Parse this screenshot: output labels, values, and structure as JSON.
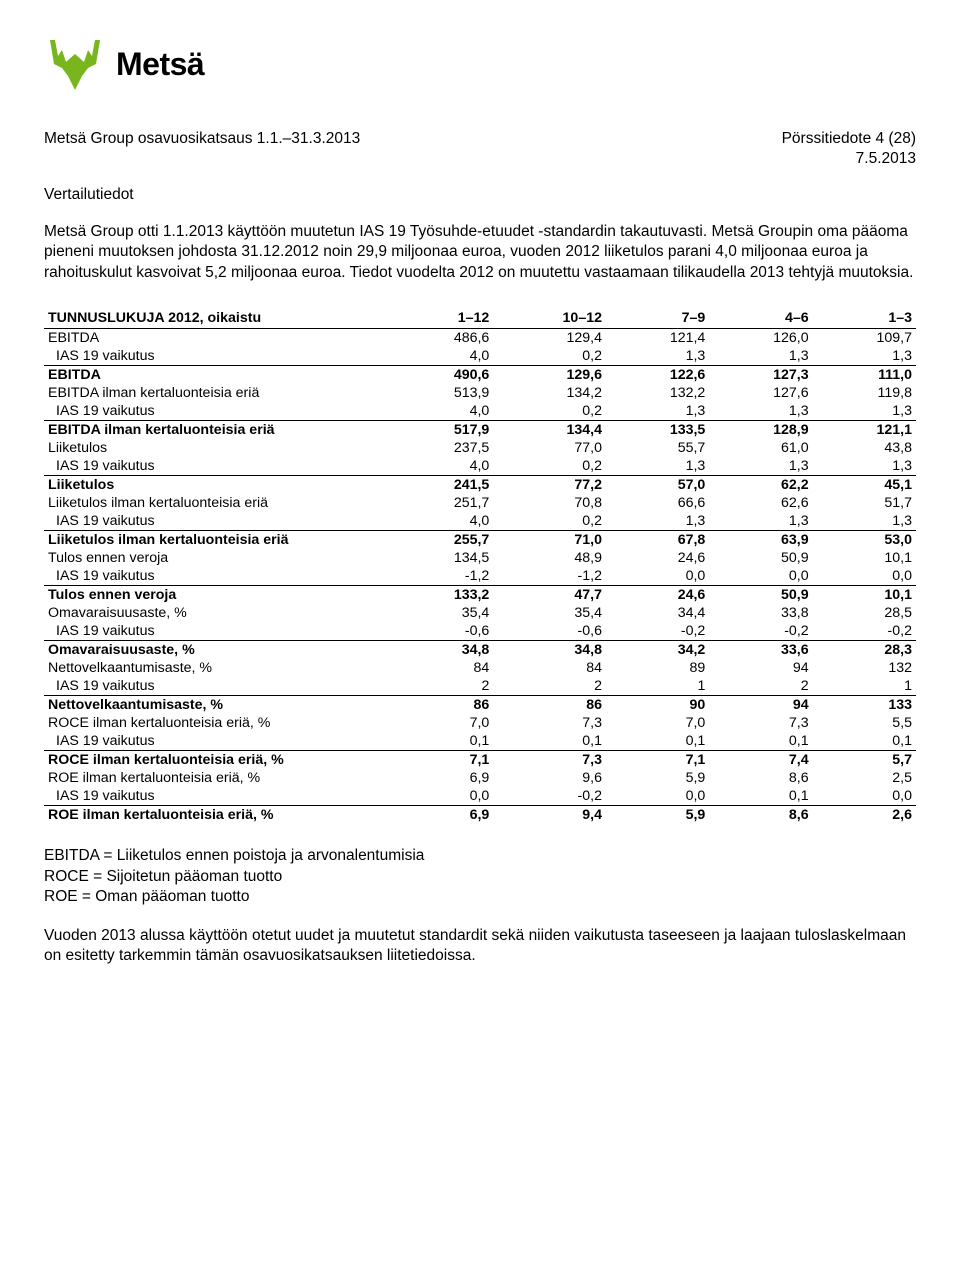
{
  "logo": {
    "brand": "Metsä",
    "icon_color": "#79b51c"
  },
  "header": {
    "left": "Metsä Group osavuosikatsaus 1.1.–31.3.2013",
    "right": "Pörssitiedote 4 (28)",
    "date": "7.5.2013"
  },
  "section_heading": "Vertailutiedot",
  "para1": "Metsä Group otti 1.1.2013 käyttöön muutetun IAS 19 Työsuhde-etuudet -standardin takautuvasti. Metsä Groupin oma pääoma pieneni muutoksen johdosta 31.12.2012 noin 29,9 miljoonaa euroa, vuoden 2012 liiketulos parani 4,0 miljoonaa euroa ja rahoituskulut kasvoivat 5,2 miljoonaa euroa. Tiedot vuodelta 2012 on muutettu vastaamaan tilikaudella 2013 tehtyjä muutoksia.",
  "table": {
    "columns": [
      "TUNNUSLUKUJA 2012, oikaistu",
      "1–12",
      "10–12",
      "7–9",
      "4–6",
      "1–3"
    ],
    "col_bold": [
      true,
      true,
      true,
      true,
      true,
      true
    ],
    "rows": [
      {
        "c": [
          "EBITDA",
          "486,6",
          "129,4",
          "121,4",
          "126,0",
          "109,7"
        ]
      },
      {
        "c": [
          "IAS 19 vaikutus",
          "4,0",
          "0,2",
          "1,3",
          "1,3",
          "1,3"
        ],
        "indent": true
      },
      {
        "c": [
          "EBITDA",
          "490,6",
          "129,6",
          "122,6",
          "127,3",
          "111,0"
        ],
        "bold": true,
        "sep": true
      },
      {
        "c": [
          "EBITDA ilman kertaluonteisia eriä",
          "513,9",
          "134,2",
          "132,2",
          "127,6",
          "119,8"
        ]
      },
      {
        "c": [
          "IAS 19 vaikutus",
          "4,0",
          "0,2",
          "1,3",
          "1,3",
          "1,3"
        ],
        "indent": true
      },
      {
        "c": [
          "EBITDA ilman kertaluonteisia eriä",
          "517,9",
          "134,4",
          "133,5",
          "128,9",
          "121,1"
        ],
        "bold": true,
        "sep": true
      },
      {
        "c": [
          "Liiketulos",
          "237,5",
          "77,0",
          "55,7",
          "61,0",
          "43,8"
        ]
      },
      {
        "c": [
          "IAS 19 vaikutus",
          "4,0",
          "0,2",
          "1,3",
          "1,3",
          "1,3"
        ],
        "indent": true
      },
      {
        "c": [
          "Liiketulos",
          "241,5",
          "77,2",
          "57,0",
          "62,2",
          "45,1"
        ],
        "bold": true,
        "sep": true
      },
      {
        "c": [
          "Liiketulos ilman kertaluonteisia eriä",
          "251,7",
          "70,8",
          "66,6",
          "62,6",
          "51,7"
        ]
      },
      {
        "c": [
          "IAS 19 vaikutus",
          "4,0",
          "0,2",
          "1,3",
          "1,3",
          "1,3"
        ],
        "indent": true
      },
      {
        "c": [
          "Liiketulos ilman kertaluonteisia eriä",
          "255,7",
          "71,0",
          "67,8",
          "63,9",
          "53,0"
        ],
        "bold": true,
        "sep": true
      },
      {
        "c": [
          "Tulos ennen veroja",
          "134,5",
          "48,9",
          "24,6",
          "50,9",
          "10,1"
        ]
      },
      {
        "c": [
          "IAS 19 vaikutus",
          "-1,2",
          "-1,2",
          "0,0",
          "0,0",
          "0,0"
        ],
        "indent": true
      },
      {
        "c": [
          "Tulos ennen veroja",
          "133,2",
          "47,7",
          "24,6",
          "50,9",
          "10,1"
        ],
        "bold": true,
        "sep": true
      },
      {
        "c": [
          "Omavaraisuusaste, %",
          "35,4",
          "35,4",
          "34,4",
          "33,8",
          "28,5"
        ]
      },
      {
        "c": [
          "IAS 19 vaikutus",
          "-0,6",
          "-0,6",
          "-0,2",
          "-0,2",
          "-0,2"
        ],
        "indent": true
      },
      {
        "c": [
          "Omavaraisuusaste, %",
          "34,8",
          "34,8",
          "34,2",
          "33,6",
          "28,3"
        ],
        "bold": true,
        "sep": true
      },
      {
        "c": [
          "Nettovelkaantumisaste, %",
          "84",
          "84",
          "89",
          "94",
          "132"
        ]
      },
      {
        "c": [
          "IAS 19 vaikutus",
          "2",
          "2",
          "1",
          "2",
          "1"
        ],
        "indent": true
      },
      {
        "c": [
          "Nettovelkaantumisaste, %",
          "86",
          "86",
          "90",
          "94",
          "133"
        ],
        "bold": true,
        "sep": true
      },
      {
        "c": [
          "ROCE ilman kertaluonteisia eriä, %",
          "7,0",
          "7,3",
          "7,0",
          "7,3",
          "5,5"
        ]
      },
      {
        "c": [
          "IAS 19 vaikutus",
          "0,1",
          "0,1",
          "0,1",
          "0,1",
          "0,1"
        ],
        "indent": true
      },
      {
        "c": [
          "ROCE ilman kertaluonteisia eriä, %",
          "7,1",
          "7,3",
          "7,1",
          "7,4",
          "5,7"
        ],
        "bold": true,
        "sep": true
      },
      {
        "c": [
          "ROE ilman kertaluonteisia eriä, %",
          "6,9",
          "9,6",
          "5,9",
          "8,6",
          "2,5"
        ]
      },
      {
        "c": [
          "IAS 19 vaikutus",
          "0,0",
          "-0,2",
          "0,0",
          "0,1",
          "0,0"
        ],
        "indent": true
      },
      {
        "c": [
          "ROE ilman kertaluonteisia eriä, %",
          "6,9",
          "9,4",
          "5,9",
          "8,6",
          "2,6"
        ],
        "bold": true,
        "sep": true
      }
    ]
  },
  "definitions": [
    "EBITDA = Liiketulos ennen poistoja ja arvonalentumisia",
    "ROCE = Sijoitetun pääoman tuotto",
    "ROE = Oman pääoman tuotto"
  ],
  "para2": "Vuoden 2013 alussa käyttöön otetut uudet ja muutetut standardit sekä niiden vaikutusta taseeseen ja laajaan tuloslaskelmaan on esitetty tarkemmin tämän osavuosikatsauksen liitetiedoissa."
}
